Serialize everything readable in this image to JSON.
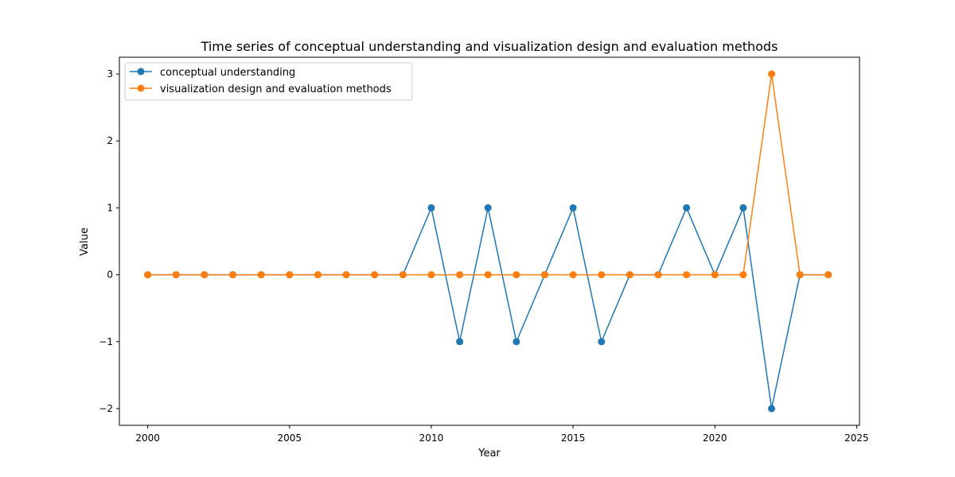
{
  "chart_data": {
    "type": "line",
    "title": "Time series of conceptual understanding and visualization design and evaluation methods",
    "xlabel": "Year",
    "ylabel": "Value",
    "xlim": [
      1999,
      2025.1
    ],
    "ylim": [
      -2.25,
      3.25
    ],
    "x_ticks": [
      2000,
      2005,
      2010,
      2015,
      2020,
      2025
    ],
    "y_ticks": [
      -2,
      -1,
      0,
      1,
      2,
      3
    ],
    "x_tick_labels": [
      "2000",
      "2005",
      "2010",
      "2015",
      "2020",
      "2025"
    ],
    "y_tick_labels": [
      "−2",
      "−1",
      "0",
      "1",
      "2",
      "3"
    ],
    "grid": false,
    "legend_position": "top-left",
    "x": [
      2000,
      2001,
      2002,
      2003,
      2004,
      2005,
      2006,
      2007,
      2008,
      2009,
      2010,
      2011,
      2012,
      2013,
      2014,
      2015,
      2016,
      2017,
      2018,
      2019,
      2020,
      2021,
      2022,
      2023,
      2024
    ],
    "series": [
      {
        "name": "conceptual understanding",
        "color": "#1f77b4",
        "values": [
          0,
          0,
          0,
          0,
          0,
          0,
          0,
          0,
          0,
          0,
          1,
          -1,
          1,
          -1,
          0,
          1,
          -1,
          0,
          0,
          1,
          0,
          1,
          -2,
          0,
          0
        ]
      },
      {
        "name": "visualization design and evaluation methods",
        "color": "#ff7f0e",
        "values": [
          0,
          0,
          0,
          0,
          0,
          0,
          0,
          0,
          0,
          0,
          0,
          0,
          0,
          0,
          0,
          0,
          0,
          0,
          0,
          0,
          0,
          0,
          3,
          0,
          0
        ]
      }
    ]
  }
}
